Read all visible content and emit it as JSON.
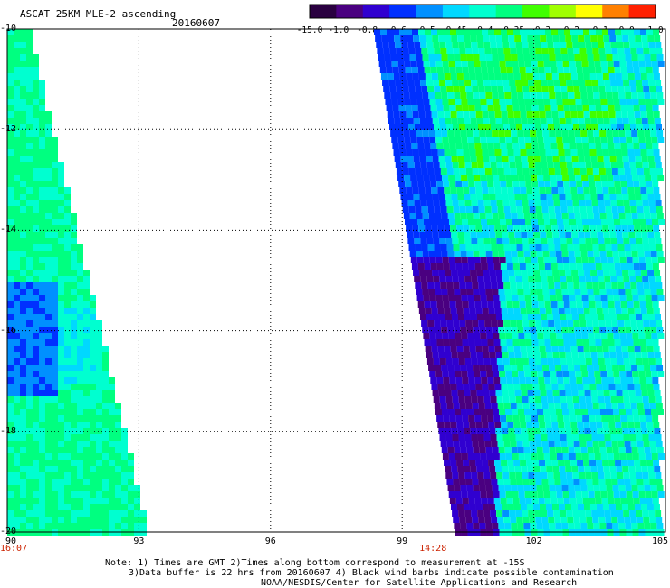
{
  "header": {
    "title": "ASCAT 25KM MLE-2 ascending",
    "date": "20160607"
  },
  "colorbar": {
    "labels": [
      "-15.0",
      "-1.0",
      "-0.8",
      "-0.6",
      "-0.5",
      "-0.45",
      "-0.4",
      "-0.35",
      "-0.3",
      "-0.2",
      "-0.1",
      "0.0",
      "1.0"
    ],
    "colors": [
      "#2a0040",
      "#4a0080",
      "#3000d0",
      "#0030ff",
      "#0090ff",
      "#00d8ff",
      "#00ffd0",
      "#00ff80",
      "#40ff00",
      "#a0ff00",
      "#ffff00",
      "#ff8000",
      "#ff2000"
    ]
  },
  "chart_data": {
    "type": "heatmap",
    "title": "ASCAT 25KM MLE-2 ascending",
    "date": "20160607",
    "x_ticks": [
      "90",
      "93",
      "96",
      "99",
      "102",
      "105"
    ],
    "y_ticks": [
      "-10",
      "-12",
      "-14",
      "-16",
      "-18",
      "-20"
    ],
    "xlim": [
      90,
      105
    ],
    "ylim": [
      -20,
      -10
    ],
    "grid": true,
    "pass_times": [
      {
        "label": "16:07",
        "lon": 90
      },
      {
        "label": "14:28",
        "lon": 99.7
      }
    ],
    "swaths": [
      {
        "name": "west",
        "lon_range": [
          90,
          93.4
        ],
        "dominant_values": [
          -0.35,
          -0.4,
          -0.6
        ]
      },
      {
        "name": "east",
        "lon_range": [
          98.2,
          105
        ],
        "dominant_values": [
          -0.4,
          -0.5,
          -0.6,
          -1.0
        ]
      }
    ]
  },
  "footer": {
    "note_line1": "Note: 1) Times are GMT 2)Times along bottom correspond to measurement at -15S",
    "note_line2": "3)Data buffer is 22 hrs from 20160607 4) Black wind barbs indicate possible contamination",
    "note_line3": "NOAA/NESDIS/Center for Satellite Applications and Research"
  }
}
